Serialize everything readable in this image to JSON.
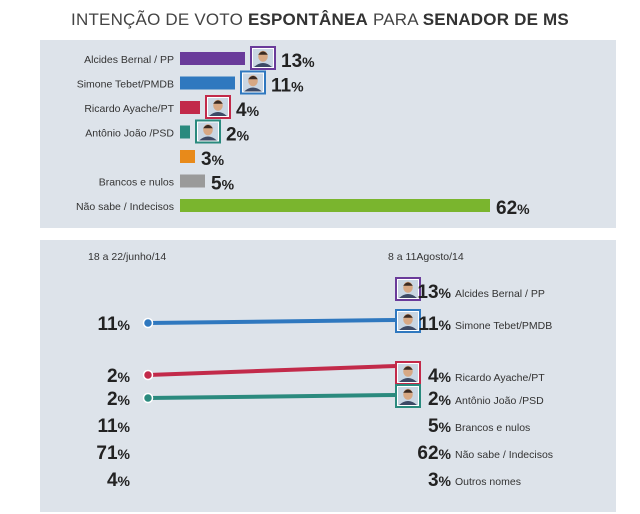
{
  "title": {
    "part1": "INTENÇÃO DE VOTO ",
    "part2": "ESPONTÂNEA",
    "part3": " PARA ",
    "part4": "SENADOR DE MS"
  },
  "chart_data": [
    {
      "type": "bar",
      "orientation": "horizontal",
      "categories": [
        "Alcides Bernal / PP",
        "Simone Tebet/PMDB",
        "Ricardo Ayache/PT",
        "Antônio João /PSD",
        "",
        "Brancos e nulos",
        "Não sabe / Indecisos"
      ],
      "values": [
        13,
        11,
        4,
        2,
        3,
        5,
        62
      ],
      "value_suffix": "%",
      "colors": [
        "#6a3b9a",
        "#2f78bf",
        "#c22a4a",
        "#2a8a7e",
        "#e88a1a",
        "#9a9a9a",
        "#7ab52e"
      ],
      "photos": [
        true,
        true,
        true,
        true,
        false,
        false,
        false
      ],
      "xlim": [
        0,
        62
      ]
    },
    {
      "type": "table",
      "period_left": "18 a 22/junho/14",
      "period_right": "8 a 11Agosto/14",
      "value_suffix": "%",
      "rows": [
        {
          "label": "Alcides Bernal / PP",
          "left": "",
          "right": 13,
          "color": "#6a3b9a",
          "photo": true,
          "line": false
        },
        {
          "label": "Simone Tebet/PMDB",
          "left": 11,
          "right": 11,
          "color": "#2f78bf",
          "photo": true,
          "line": true
        },
        {
          "label": "Ricardo Ayache/PT",
          "left": 2,
          "right": 4,
          "color": "#c22a4a",
          "photo": true,
          "line": true
        },
        {
          "label": "Antônio João /PSD",
          "left": 2,
          "right": 2,
          "color": "#2a8a7e",
          "photo": true,
          "line": true
        },
        {
          "label": "Brancos e nulos",
          "left": 11,
          "right": 5,
          "color": "",
          "photo": false,
          "line": false
        },
        {
          "label": "Não sabe / Indecisos",
          "left": 71,
          "right": 62,
          "color": "",
          "photo": false,
          "line": false
        },
        {
          "label": "Outros nomes",
          "left": 4,
          "right": 3,
          "color": "",
          "photo": false,
          "line": false
        }
      ]
    }
  ]
}
